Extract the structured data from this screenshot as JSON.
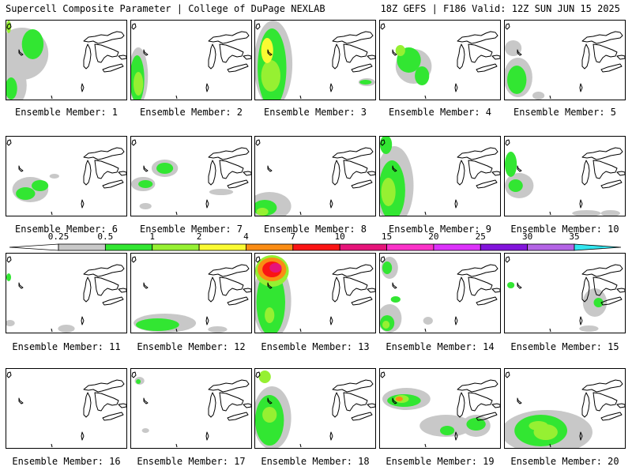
{
  "header": {
    "left": "Supercell Composite Parameter | College of DuPage NEXLAB",
    "right": "18Z GEFS | F186 Valid: 12Z SUN JUN 15 2025"
  },
  "colorbar": {
    "levels": [
      "0.25",
      "0.5",
      "1",
      "2",
      "4",
      "7",
      "10",
      "15",
      "20",
      "25",
      "30",
      "35"
    ],
    "colors": [
      "#c8c8c8",
      "#32e632",
      "#96f032",
      "#fafa32",
      "#fa8c14",
      "#fa1414",
      "#e6147a",
      "#fa32c8",
      "#dc32fa",
      "#8214dc",
      "#b464e6",
      "#32e6f0"
    ]
  },
  "panels": [
    {
      "label": "Ensemble Member: 1",
      "blobs": [
        [
          0.13,
          0.42,
          0.22,
          0.33,
          0
        ],
        [
          0.05,
          0.82,
          0.12,
          0.27,
          0
        ],
        [
          0.22,
          0.3,
          0.09,
          0.19,
          1
        ],
        [
          0.04,
          0.86,
          0.05,
          0.14,
          1
        ],
        [
          0.02,
          0.08,
          0.02,
          0.08,
          2
        ]
      ]
    },
    {
      "label": "Ensemble Member: 2",
      "blobs": [
        [
          0.06,
          0.7,
          0.08,
          0.36,
          0
        ],
        [
          0.05,
          0.74,
          0.06,
          0.3,
          1
        ],
        [
          0.06,
          0.8,
          0.04,
          0.15,
          2
        ]
      ]
    },
    {
      "label": "Ensemble Member: 3",
      "blobs": [
        [
          0.15,
          0.55,
          0.16,
          0.55,
          0
        ],
        [
          0.14,
          0.6,
          0.12,
          0.5,
          1
        ],
        [
          0.13,
          0.7,
          0.08,
          0.2,
          2
        ],
        [
          0.1,
          0.38,
          0.05,
          0.16,
          3
        ],
        [
          0.93,
          0.78,
          0.07,
          0.05,
          0
        ],
        [
          0.92,
          0.78,
          0.05,
          0.03,
          1
        ]
      ]
    },
    {
      "label": "Ensemble Member: 4",
      "blobs": [
        [
          0.28,
          0.58,
          0.15,
          0.22,
          0
        ],
        [
          0.24,
          0.5,
          0.1,
          0.16,
          1
        ],
        [
          0.35,
          0.7,
          0.06,
          0.12,
          1
        ],
        [
          0.17,
          0.38,
          0.04,
          0.07,
          2
        ]
      ]
    },
    {
      "label": "Ensemble Member: 5",
      "blobs": [
        [
          0.11,
          0.72,
          0.12,
          0.25,
          0
        ],
        [
          0.1,
          0.75,
          0.08,
          0.18,
          1
        ],
        [
          0.07,
          0.35,
          0.07,
          0.1,
          0
        ],
        [
          0.28,
          0.95,
          0.05,
          0.05,
          0
        ]
      ]
    },
    {
      "label": "Ensemble Member: 6",
      "blobs": [
        [
          0.2,
          0.67,
          0.15,
          0.16,
          0
        ],
        [
          0.16,
          0.72,
          0.08,
          0.08,
          1
        ],
        [
          0.28,
          0.62,
          0.07,
          0.07,
          1
        ],
        [
          0.4,
          0.5,
          0.04,
          0.03,
          0
        ]
      ]
    },
    {
      "label": "Ensemble Member: 7",
      "blobs": [
        [
          0.28,
          0.4,
          0.11,
          0.11,
          0
        ],
        [
          0.28,
          0.4,
          0.07,
          0.07,
          1
        ],
        [
          0.1,
          0.6,
          0.1,
          0.09,
          0
        ],
        [
          0.12,
          0.6,
          0.06,
          0.05,
          1
        ],
        [
          0.75,
          0.7,
          0.1,
          0.04,
          0
        ],
        [
          0.12,
          0.88,
          0.05,
          0.04,
          0
        ]
      ]
    },
    {
      "label": "Ensemble Member: 8",
      "blobs": [
        [
          0.12,
          0.88,
          0.18,
          0.18,
          0
        ],
        [
          0.08,
          0.9,
          0.1,
          0.1,
          1
        ],
        [
          0.06,
          0.95,
          0.05,
          0.05,
          2
        ]
      ]
    },
    {
      "label": "Ensemble Member: 9",
      "blobs": [
        [
          0.12,
          0.62,
          0.16,
          0.5,
          0
        ],
        [
          0.1,
          0.68,
          0.11,
          0.38,
          1
        ],
        [
          0.07,
          0.7,
          0.06,
          0.18,
          2
        ],
        [
          0.05,
          0.1,
          0.05,
          0.12,
          1
        ]
      ]
    },
    {
      "label": "Ensemble Member: 10",
      "blobs": [
        [
          0.12,
          0.62,
          0.12,
          0.16,
          0
        ],
        [
          0.09,
          0.62,
          0.06,
          0.08,
          1
        ],
        [
          0.05,
          0.35,
          0.05,
          0.16,
          1
        ],
        [
          0.68,
          0.97,
          0.12,
          0.04,
          0
        ],
        [
          0.88,
          0.97,
          0.08,
          0.04,
          0
        ]
      ]
    },
    {
      "label": "Ensemble Member: 11",
      "blobs": [
        [
          0.5,
          0.95,
          0.07,
          0.05,
          0
        ],
        [
          0.03,
          0.88,
          0.04,
          0.04,
          0
        ],
        [
          0.02,
          0.3,
          0.02,
          0.05,
          1
        ]
      ]
    },
    {
      "label": "Ensemble Member: 12",
      "blobs": [
        [
          0.28,
          0.88,
          0.26,
          0.12,
          0
        ],
        [
          0.22,
          0.9,
          0.18,
          0.08,
          1
        ],
        [
          0.72,
          0.96,
          0.08,
          0.04,
          0
        ]
      ]
    },
    {
      "label": "Ensemble Member: 13",
      "blobs": [
        [
          0.14,
          0.6,
          0.16,
          0.48,
          0
        ],
        [
          0.13,
          0.62,
          0.12,
          0.42,
          1
        ],
        [
          0.14,
          0.22,
          0.14,
          0.2,
          2
        ],
        [
          0.14,
          0.2,
          0.12,
          0.15,
          4
        ],
        [
          0.14,
          0.2,
          0.08,
          0.1,
          5
        ],
        [
          0.17,
          0.18,
          0.05,
          0.06,
          6
        ],
        [
          0.12,
          0.78,
          0.04,
          0.1,
          2
        ]
      ]
    },
    {
      "label": "Ensemble Member: 14",
      "blobs": [
        [
          0.08,
          0.82,
          0.1,
          0.18,
          0
        ],
        [
          0.06,
          0.88,
          0.06,
          0.1,
          1
        ],
        [
          0.05,
          0.9,
          0.03,
          0.05,
          2
        ],
        [
          0.08,
          0.18,
          0.07,
          0.14,
          0
        ],
        [
          0.06,
          0.18,
          0.04,
          0.08,
          1
        ],
        [
          0.13,
          0.58,
          0.04,
          0.04,
          1
        ],
        [
          0.4,
          0.85,
          0.04,
          0.05,
          0
        ]
      ]
    },
    {
      "label": "Ensemble Member: 15",
      "blobs": [
        [
          0.75,
          0.62,
          0.1,
          0.18,
          0
        ],
        [
          0.78,
          0.62,
          0.04,
          0.06,
          1
        ],
        [
          0.7,
          0.95,
          0.08,
          0.04,
          0
        ],
        [
          0.05,
          0.4,
          0.03,
          0.04,
          1
        ]
      ]
    },
    {
      "label": "Ensemble Member: 16",
      "blobs": []
    },
    {
      "label": "Ensemble Member: 17",
      "blobs": [
        [
          0.07,
          0.15,
          0.04,
          0.05,
          0
        ],
        [
          0.06,
          0.16,
          0.02,
          0.03,
          1
        ],
        [
          0.12,
          0.78,
          0.03,
          0.03,
          0
        ]
      ]
    },
    {
      "label": "Ensemble Member: 18",
      "blobs": [
        [
          0.14,
          0.62,
          0.16,
          0.4,
          0
        ],
        [
          0.12,
          0.65,
          0.12,
          0.32,
          1
        ],
        [
          0.12,
          0.58,
          0.06,
          0.1,
          2
        ],
        [
          0.08,
          0.1,
          0.05,
          0.08,
          2
        ]
      ]
    },
    {
      "label": "Ensemble Member: 19",
      "blobs": [
        [
          0.22,
          0.38,
          0.2,
          0.14,
          0
        ],
        [
          0.2,
          0.4,
          0.14,
          0.08,
          1
        ],
        [
          0.18,
          0.38,
          0.06,
          0.05,
          2
        ],
        [
          0.16,
          0.38,
          0.03,
          0.03,
          4
        ],
        [
          0.55,
          0.72,
          0.22,
          0.14,
          0
        ],
        [
          0.8,
          0.72,
          0.12,
          0.14,
          0
        ],
        [
          0.8,
          0.7,
          0.08,
          0.08,
          1
        ],
        [
          0.56,
          0.78,
          0.06,
          0.06,
          1
        ]
      ]
    },
    {
      "label": "Ensemble Member: 20",
      "blobs": [
        [
          0.35,
          0.8,
          0.38,
          0.28,
          0
        ],
        [
          0.3,
          0.78,
          0.22,
          0.2,
          1
        ],
        [
          0.28,
          0.72,
          0.08,
          0.06,
          2
        ],
        [
          0.34,
          0.8,
          0.1,
          0.1,
          2
        ]
      ]
    }
  ]
}
